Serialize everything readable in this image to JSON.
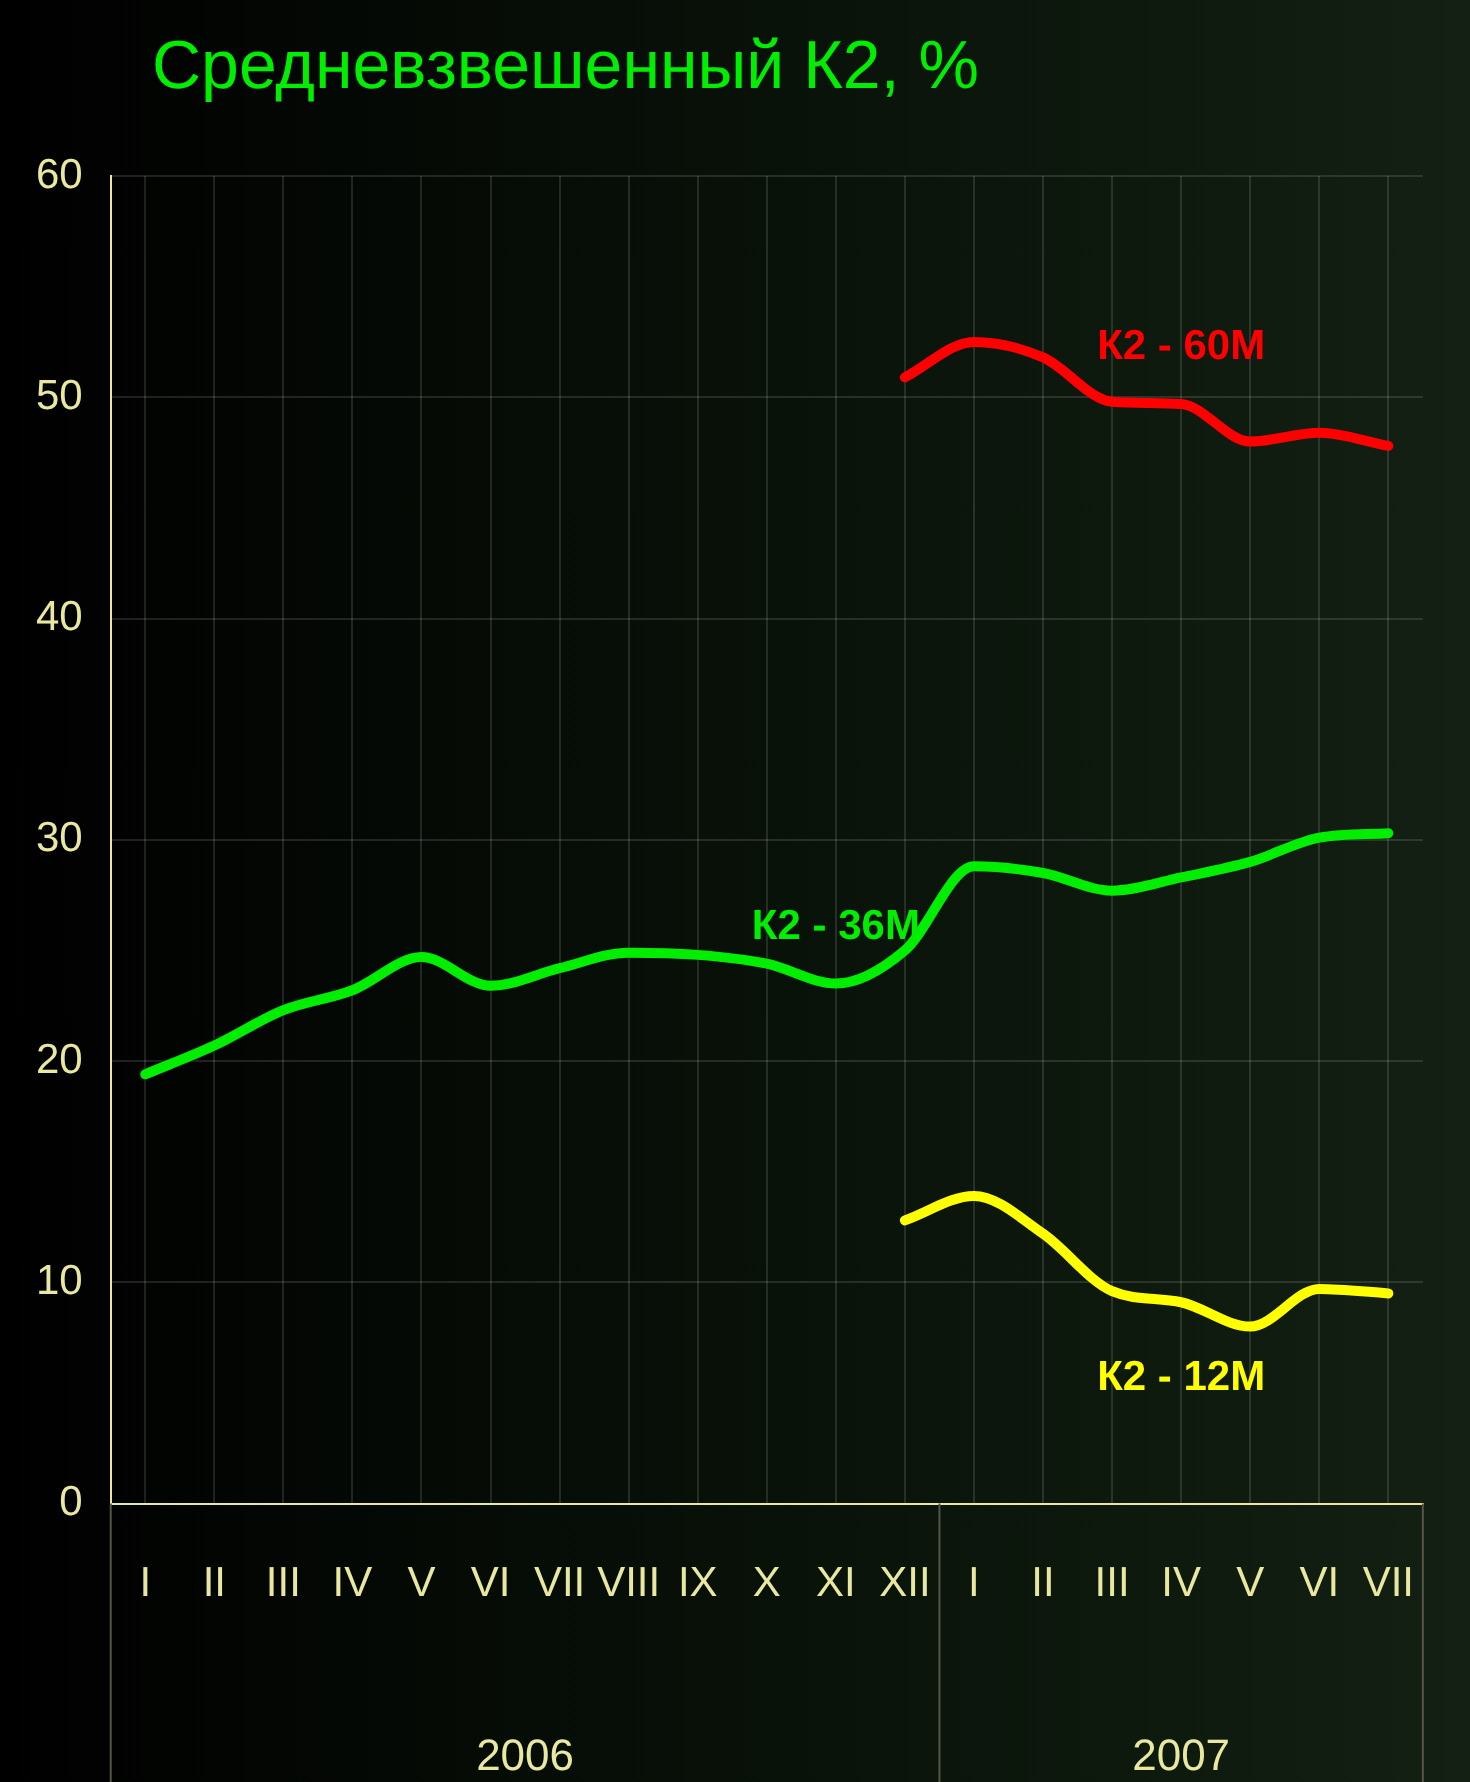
{
  "chart_data": {
    "type": "line",
    "title": "Средневзвешенный К2, %",
    "categories": [
      "I",
      "II",
      "III",
      "IV",
      "V",
      "VI",
      "VII",
      "VIII",
      "IX",
      "X",
      "XI",
      "XII",
      "I",
      "II",
      "III",
      "IV",
      "V",
      "VI",
      "VII"
    ],
    "series": [
      {
        "name": "К2 - 60M",
        "color": "#ff0000",
        "values": [
          null,
          null,
          null,
          null,
          null,
          null,
          null,
          null,
          null,
          null,
          null,
          50.9,
          52.5,
          51.8,
          49.8,
          49.7,
          48.0,
          48.4,
          47.8
        ]
      },
      {
        "name": "К2 - 36M",
        "color": "#00ee00",
        "values": [
          19.4,
          20.7,
          22.3,
          23.2,
          24.7,
          23.4,
          24.2,
          24.9,
          24.8,
          24.4,
          23.5,
          25.0,
          28.8,
          28.5,
          27.7,
          28.3,
          29.0,
          30.1,
          30.3
        ]
      },
      {
        "name": "К2 - 12M",
        "color": "#ffff00",
        "values": [
          null,
          null,
          null,
          null,
          null,
          null,
          null,
          null,
          null,
          null,
          null,
          12.8,
          13.9,
          12.2,
          9.6,
          9.1,
          8.0,
          9.7,
          9.5
        ]
      }
    ],
    "annotations": [
      "2006",
      "2007"
    ],
    "ylim": [
      0,
      60
    ],
    "yticks": [
      0,
      10,
      20,
      30,
      40,
      50,
      60
    ],
    "grid": true,
    "legend": false,
    "marker": "none",
    "line_style": "solid"
  }
}
